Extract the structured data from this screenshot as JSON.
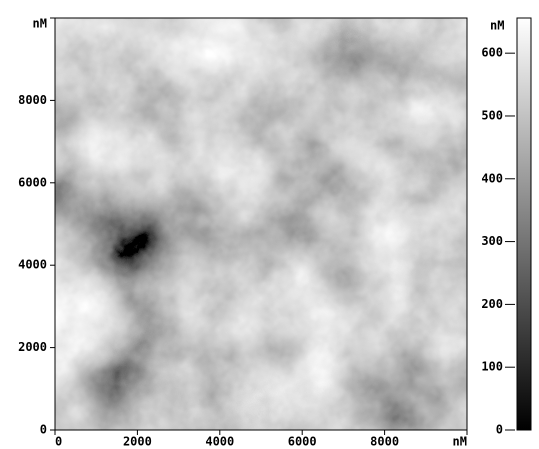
{
  "chart_data": {
    "type": "heatmap",
    "xlim": [
      0,
      10000
    ],
    "ylim": [
      0,
      10000
    ],
    "xticks": [
      0,
      2000,
      4000,
      6000,
      8000,
      {
        "value": 10000,
        "label": "nM"
      }
    ],
    "yticks": [
      0,
      2000,
      4000,
      6000,
      8000,
      {
        "value": 10000,
        "label": "nM"
      }
    ],
    "colorbar": {
      "lim": [
        0,
        656
      ],
      "ticks": [
        0,
        100,
        200,
        300,
        400,
        500,
        600,
        {
          "value": 656,
          "label": "nM"
        }
      ]
    }
  }
}
